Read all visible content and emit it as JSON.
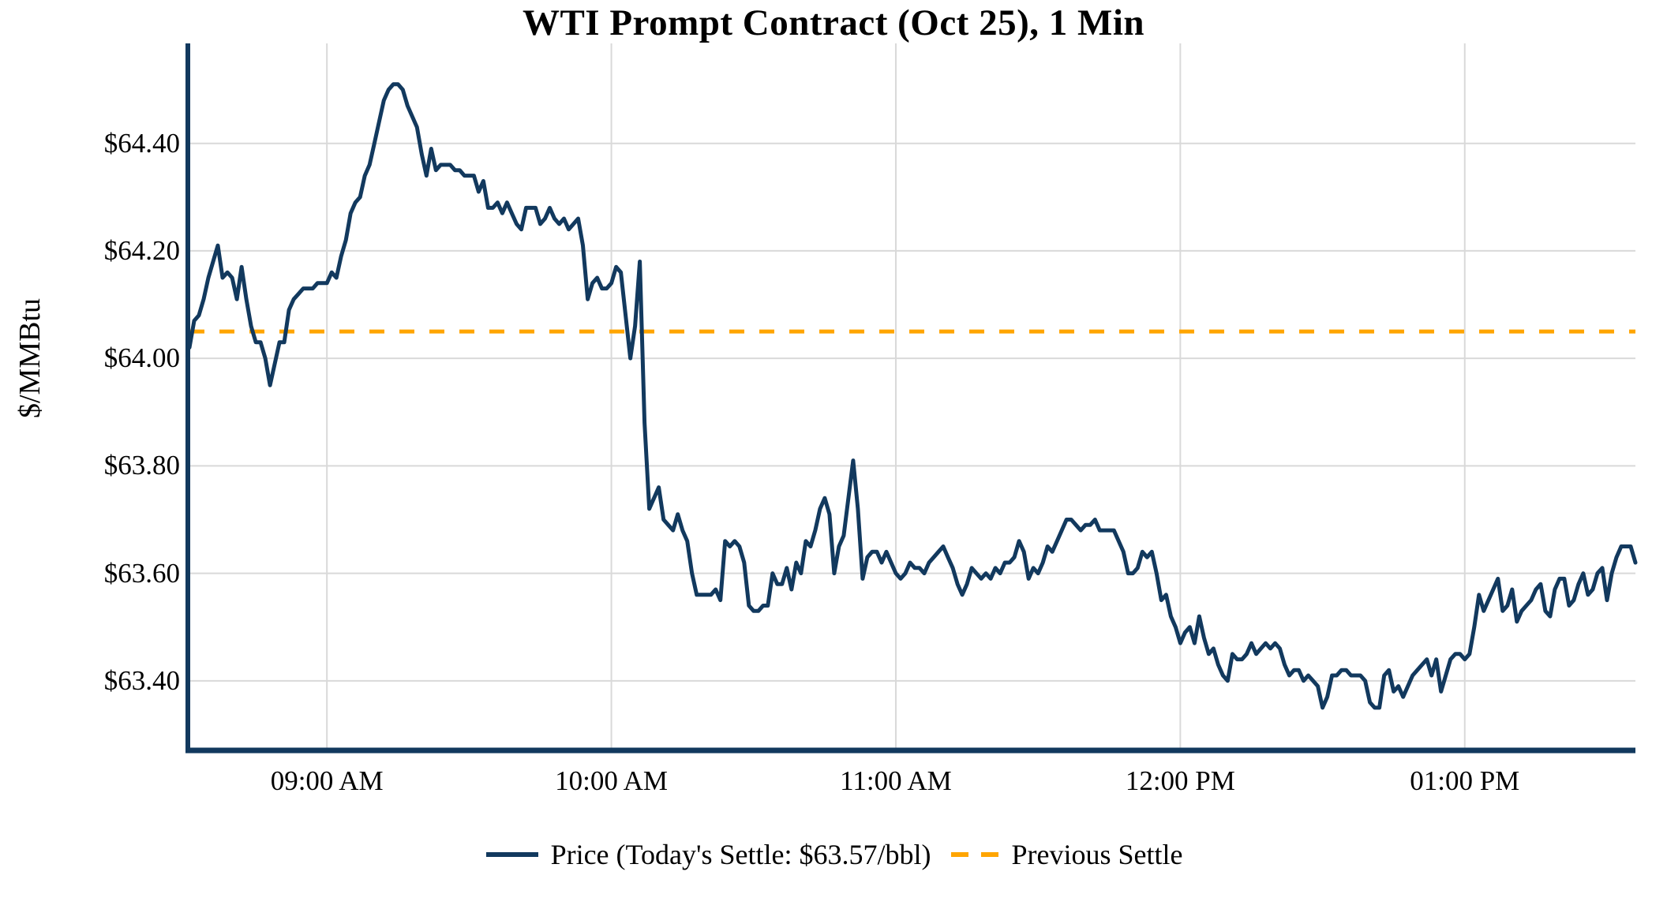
{
  "chart": {
    "title": "WTI Prompt Contract (Oct 25), 1 Min",
    "ylabel": "$/MMBtu",
    "legend": {
      "price_label": "Price (Today's Settle: $63.57/bbl)",
      "prev_settle_label": "Previous Settle"
    }
  },
  "chart_data": {
    "type": "line",
    "title": "WTI Prompt Contract (Oct 25), 1 Min",
    "xlabel": "",
    "ylabel": "$/MMBtu",
    "grid": true,
    "legend_position": "bottom-center",
    "colors": {
      "price_line": "#12395e",
      "prev_settle_line": "#FFA500",
      "gridline": "#d9d9d9",
      "axis_spine": "#12395e",
      "text": "#000000",
      "background": "#ffffff"
    },
    "ylim": [
      63.272,
      64.586
    ],
    "y_ticks": [
      {
        "v": 64.4,
        "label": "$64.40"
      },
      {
        "v": 64.2,
        "label": "$64.20"
      },
      {
        "v": 64.0,
        "label": "$64.00"
      },
      {
        "v": 63.8,
        "label": "$63.80"
      },
      {
        "v": 63.6,
        "label": "$63.60"
      },
      {
        "v": 63.4,
        "label": "$63.40"
      }
    ],
    "x_start_label": "08:31 AM",
    "x_end_label": "01:36 PM",
    "x_interval_minutes": 1,
    "x_ticks": [
      {
        "m": 29,
        "label": "09:00 AM"
      },
      {
        "m": 89,
        "label": "10:00 AM"
      },
      {
        "m": 149,
        "label": "11:00 AM"
      },
      {
        "m": 209,
        "label": "12:00 PM"
      },
      {
        "m": 269,
        "label": "01:00 PM"
      }
    ],
    "previous_settle": 64.05,
    "todays_settle": 63.57,
    "series": [
      {
        "name": "Price",
        "unit": "$/MMBtu",
        "prices_1min": [
          64.02,
          64.07,
          64.08,
          64.11,
          64.15,
          64.18,
          64.21,
          64.15,
          64.16,
          64.15,
          64.11,
          64.17,
          64.11,
          64.06,
          64.03,
          64.03,
          64.0,
          63.95,
          63.99,
          64.03,
          64.03,
          64.09,
          64.11,
          64.12,
          64.13,
          64.13,
          64.13,
          64.14,
          64.14,
          64.14,
          64.16,
          64.15,
          64.19,
          64.22,
          64.27,
          64.29,
          64.3,
          64.34,
          64.36,
          64.4,
          64.44,
          64.48,
          64.5,
          64.51,
          64.51,
          64.5,
          64.47,
          64.45,
          64.43,
          64.38,
          64.34,
          64.39,
          64.35,
          64.36,
          64.36,
          64.36,
          64.35,
          64.35,
          64.34,
          64.34,
          64.34,
          64.31,
          64.33,
          64.28,
          64.28,
          64.29,
          64.27,
          64.29,
          64.27,
          64.25,
          64.24,
          64.28,
          64.28,
          64.28,
          64.25,
          64.26,
          64.28,
          64.26,
          64.25,
          64.26,
          64.24,
          64.25,
          64.26,
          64.21,
          64.11,
          64.14,
          64.15,
          64.13,
          64.13,
          64.14,
          64.17,
          64.16,
          64.08,
          64.0,
          64.06,
          64.18,
          63.88,
          63.72,
          63.74,
          63.76,
          63.7,
          63.69,
          63.68,
          63.71,
          63.68,
          63.66,
          63.6,
          63.56,
          63.56,
          63.56,
          63.56,
          63.57,
          63.55,
          63.66,
          63.65,
          63.66,
          63.65,
          63.62,
          63.54,
          63.53,
          63.53,
          63.54,
          63.54,
          63.6,
          63.58,
          63.58,
          63.61,
          63.57,
          63.62,
          63.6,
          63.66,
          63.65,
          63.68,
          63.72,
          63.74,
          63.71,
          63.6,
          63.65,
          63.67,
          63.74,
          63.81,
          63.72,
          63.59,
          63.63,
          63.64,
          63.64,
          63.62,
          63.64,
          63.62,
          63.6,
          63.59,
          63.6,
          63.62,
          63.61,
          63.61,
          63.6,
          63.62,
          63.63,
          63.64,
          63.65,
          63.63,
          63.61,
          63.58,
          63.56,
          63.58,
          63.61,
          63.6,
          63.59,
          63.6,
          63.59,
          63.61,
          63.6,
          63.62,
          63.62,
          63.63,
          63.66,
          63.64,
          63.59,
          63.61,
          63.6,
          63.62,
          63.65,
          63.64,
          63.66,
          63.68,
          63.7,
          63.7,
          63.69,
          63.68,
          63.69,
          63.69,
          63.7,
          63.68,
          63.68,
          63.68,
          63.68,
          63.66,
          63.64,
          63.6,
          63.6,
          63.61,
          63.64,
          63.63,
          63.64,
          63.6,
          63.55,
          63.56,
          63.52,
          63.5,
          63.47,
          63.49,
          63.5,
          63.47,
          63.52,
          63.48,
          63.45,
          63.46,
          63.43,
          63.41,
          63.4,
          63.45,
          63.44,
          63.44,
          63.45,
          63.47,
          63.45,
          63.46,
          63.47,
          63.46,
          63.47,
          63.46,
          63.43,
          63.41,
          63.42,
          63.42,
          63.4,
          63.41,
          63.4,
          63.39,
          63.35,
          63.37,
          63.41,
          63.41,
          63.42,
          63.42,
          63.41,
          63.41,
          63.41,
          63.4,
          63.36,
          63.35,
          63.35,
          63.41,
          63.42,
          63.38,
          63.39,
          63.37,
          63.39,
          63.41,
          63.42,
          63.43,
          63.44,
          63.41,
          63.44,
          63.38,
          63.41,
          63.44,
          63.45,
          63.45,
          63.44,
          63.45,
          63.5,
          63.56,
          63.53,
          63.55,
          63.57,
          63.59,
          63.53,
          63.54,
          63.57,
          63.51,
          63.53,
          63.54,
          63.55,
          63.57,
          63.58,
          63.53,
          63.52,
          63.57,
          63.59,
          63.59,
          63.54,
          63.55,
          63.58,
          63.6,
          63.56,
          63.57,
          63.6,
          63.61,
          63.55,
          63.6,
          63.63,
          63.65,
          63.65,
          63.65,
          63.62
        ]
      }
    ]
  }
}
